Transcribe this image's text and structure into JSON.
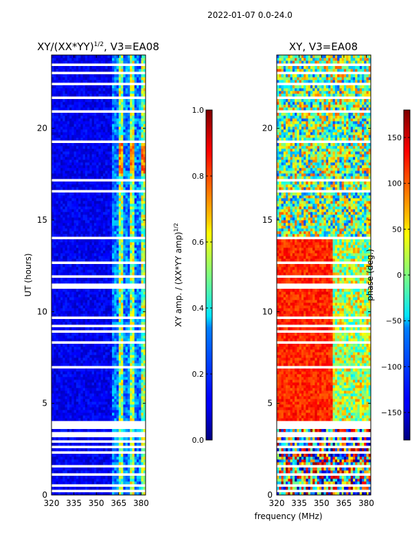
{
  "suptitle": "2022-01-07 0.0-24.0",
  "xlabel": "frequency (MHz)",
  "chart_data": [
    {
      "type": "heatmap",
      "title": "XY/(XX*YY)^{1/2}, V3=EA08",
      "title_main": "XY/(XX*YY)",
      "title_exp": "1/2",
      "title_tail": ", V3=EA08",
      "ylabel": "UT (hours)",
      "xlabel": "frequency (MHz)",
      "xlim": [
        320,
        383
      ],
      "ylim": [
        0,
        24
      ],
      "xticks": [
        320,
        335,
        350,
        365,
        380
      ],
      "yticks": [
        0,
        5,
        10,
        15,
        20
      ],
      "colorbar": {
        "label_main": "XY amp. / (XX*YY amp)",
        "label_exp": "1/2",
        "range": [
          0.0,
          1.0
        ],
        "ticks": [
          "0.0",
          "0.2",
          "0.4",
          "0.6",
          "0.8",
          "1.0"
        ]
      },
      "colormap": "jet",
      "description_bands": [
        {
          "freq_range": [
            320,
            361
          ],
          "value": 0.08
        },
        {
          "freq_range": [
            361,
            383
          ],
          "value": 0.45
        }
      ]
    },
    {
      "type": "heatmap",
      "title": "XY, V3=EA08",
      "ylabel": "",
      "xlabel": "frequency (MHz)",
      "xlim": [
        320,
        383
      ],
      "ylim": [
        0,
        24
      ],
      "xticks": [
        320,
        335,
        350,
        365,
        380
      ],
      "yticks": [
        0,
        5,
        10,
        15,
        20
      ],
      "colorbar": {
        "label": "phase (deg.)",
        "range": [
          -180,
          180
        ],
        "ticks": [
          "-150",
          "-100",
          "-50",
          "0",
          "50",
          "100",
          "150"
        ]
      },
      "colormap": "jet"
    }
  ],
  "colors": {
    "jet_low": "#00007f",
    "jet_high": "#7f0000",
    "frame": "#000000"
  }
}
